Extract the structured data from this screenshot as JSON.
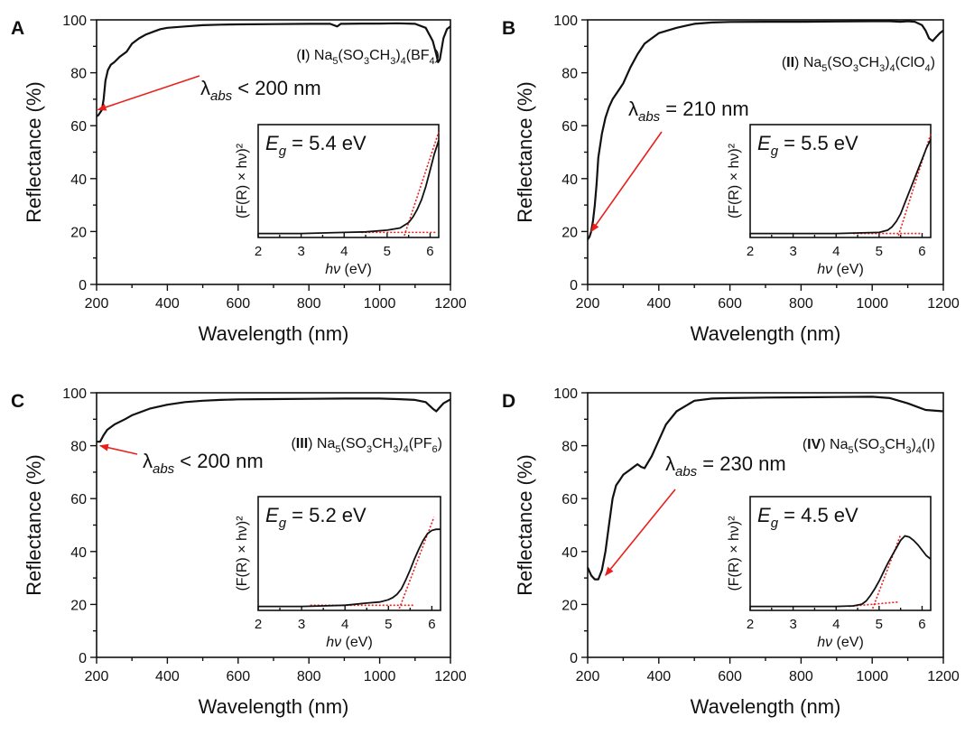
{
  "colors": {
    "line": "#111111",
    "accent": "#e8201c",
    "fit": "#e8201c"
  },
  "chart_data": [
    {
      "panel": "A",
      "type": "line",
      "xlabel": "Wavelength (nm)",
      "ylabel": "Reflectance (%)",
      "xlim": [
        200,
        1200
      ],
      "ylim": [
        0,
        100
      ],
      "xticks": [
        200,
        400,
        600,
        800,
        1000,
        1200
      ],
      "yticks": [
        0,
        20,
        40,
        60,
        80,
        100
      ],
      "compound": {
        "numeral": "I",
        "formula_parts": [
          "Na",
          "5",
          "(SO",
          "3",
          "CH",
          "3",
          ")",
          "4",
          "(BF",
          "4",
          ")"
        ]
      },
      "annotation": {
        "prefix": "λ",
        "sub": "abs",
        "text": " < 200 nm",
        "target": [
          204,
          66
        ]
      },
      "x": [
        200,
        205,
        215,
        220,
        225,
        232,
        240,
        250,
        265,
        285,
        300,
        320,
        340,
        360,
        380,
        400,
        450,
        500,
        550,
        600,
        700,
        800,
        860,
        880,
        890,
        900,
        950,
        1000,
        1050,
        1100,
        1130,
        1150,
        1160,
        1165,
        1170,
        1180,
        1190,
        1200
      ],
      "y": [
        63.5,
        64,
        66,
        70,
        77,
        81,
        83,
        84,
        86,
        88,
        91,
        93,
        94.5,
        95.5,
        96.5,
        97,
        97.5,
        98,
        98.2,
        98.3,
        98.4,
        98.5,
        98.5,
        97.5,
        98.5,
        98.5,
        98.6,
        98.6,
        98.7,
        98.5,
        97,
        92,
        87,
        84,
        85,
        93,
        96.5,
        97.5
      ],
      "inset": {
        "eg_label": "E",
        "eg_sub": "g",
        "eg_text": " = 5.4 eV",
        "xlabel_italic": "hν",
        "xlabel_rest": " (eV)",
        "ylabel": "(F(R) × hν)²",
        "xlim": [
          2,
          6.2
        ],
        "xticks": [
          2,
          3,
          4,
          5,
          6
        ],
        "x": [
          2,
          3,
          4,
          4.5,
          5,
          5.3,
          5.5,
          5.6,
          5.7,
          5.8,
          5.9,
          6.0,
          6.1,
          6.2
        ],
        "y": [
          0.02,
          0.02,
          0.03,
          0.035,
          0.05,
          0.07,
          0.12,
          0.17,
          0.24,
          0.33,
          0.45,
          0.6,
          0.75,
          0.87
        ],
        "fit_line": [
          [
            5.4,
            0
          ],
          [
            6.2,
            0.95
          ]
        ],
        "baseline": [
          [
            4.4,
            0.03
          ],
          [
            6.15,
            0.03
          ]
        ]
      }
    },
    {
      "panel": "B",
      "type": "line",
      "xlabel": "Wavelength (nm)",
      "ylabel": "Reflectance (%)",
      "xlim": [
        200,
        1200
      ],
      "ylim": [
        0,
        100
      ],
      "xticks": [
        200,
        400,
        600,
        800,
        1000,
        1200
      ],
      "yticks": [
        0,
        20,
        40,
        60,
        80,
        100
      ],
      "compound": {
        "numeral": "II",
        "formula_parts": [
          "Na",
          "5",
          "(SO",
          "3",
          "CH",
          "3",
          ")",
          "4",
          "(ClO",
          "4",
          ")"
        ]
      },
      "annotation": {
        "prefix": "λ",
        "sub": "abs",
        "text": " = 210 nm",
        "target": [
          210,
          20
        ]
      },
      "x": [
        200,
        205,
        210,
        215,
        220,
        225,
        230,
        240,
        250,
        260,
        270,
        290,
        300,
        320,
        340,
        360,
        380,
        400,
        450,
        500,
        550,
        600,
        700,
        800,
        900,
        1000,
        1050,
        1080,
        1100,
        1120,
        1140,
        1150,
        1160,
        1170,
        1180,
        1190,
        1200
      ],
      "y": [
        17,
        18,
        20,
        24,
        30,
        38,
        48,
        57,
        63,
        67,
        70,
        74,
        76,
        82,
        87,
        91,
        93,
        95,
        97,
        98.5,
        99,
        99.2,
        99.3,
        99.3,
        99.4,
        99.5,
        99.5,
        99.3,
        99.5,
        99.3,
        98,
        96,
        93,
        92,
        93.5,
        95,
        96
      ],
      "inset": {
        "eg_label": "E",
        "eg_sub": "g",
        "eg_text": " = 5.5 eV",
        "xlabel_italic": "hν",
        "xlabel_rest": " (eV)",
        "ylabel": "(F(R) × hν)²",
        "xlim": [
          2,
          6.2
        ],
        "xticks": [
          2,
          3,
          4,
          5,
          6
        ],
        "x": [
          2,
          3,
          4,
          4.5,
          5,
          5.2,
          5.3,
          5.4,
          5.5,
          5.6,
          5.7,
          5.8,
          5.9,
          6.0,
          6.1,
          6.2
        ],
        "y": [
          0.02,
          0.02,
          0.02,
          0.025,
          0.03,
          0.05,
          0.08,
          0.13,
          0.2,
          0.3,
          0.4,
          0.5,
          0.6,
          0.7,
          0.8,
          0.88
        ],
        "fit_line": [
          [
            5.45,
            0
          ],
          [
            6.2,
            0.93
          ]
        ],
        "baseline": [
          [
            4.4,
            0.02
          ],
          [
            6.0,
            0.02
          ]
        ]
      }
    },
    {
      "panel": "C",
      "type": "line",
      "xlabel": "Wavelength (nm)",
      "ylabel": "Reflectance (%)",
      "xlim": [
        200,
        1200
      ],
      "ylim": [
        0,
        100
      ],
      "xticks": [
        200,
        400,
        600,
        800,
        1000,
        1200
      ],
      "yticks": [
        0,
        20,
        40,
        60,
        80,
        100
      ],
      "compound": {
        "numeral": "III",
        "formula_parts": [
          "Na",
          "5",
          "(SO",
          "3",
          "CH",
          "3",
          ")",
          "4",
          "(PF",
          "6",
          ")"
        ]
      },
      "annotation": {
        "prefix": "λ",
        "sub": "abs",
        "text": " < 200 nm",
        "target": [
          210,
          80
        ]
      },
      "x": [
        200,
        210,
        220,
        230,
        250,
        280,
        300,
        350,
        400,
        450,
        500,
        550,
        600,
        700,
        800,
        900,
        1000,
        1050,
        1100,
        1130,
        1150,
        1160,
        1170,
        1180,
        1200
      ],
      "y": [
        81.5,
        81.5,
        84,
        86,
        88,
        90,
        91.5,
        94,
        95.5,
        96.5,
        97,
        97.3,
        97.5,
        97.6,
        97.7,
        97.8,
        97.8,
        97.6,
        97.3,
        96.5,
        94,
        93,
        94.5,
        96,
        97.5
      ],
      "inset": {
        "eg_label": "E",
        "eg_sub": "g",
        "eg_text": " = 5.2 eV",
        "xlabel_italic": "hν",
        "xlabel_rest": " (eV)",
        "ylabel": "(F(R) × hν)²",
        "xlim": [
          2,
          6.2
        ],
        "xticks": [
          2,
          3,
          4,
          5,
          6
        ],
        "x": [
          2,
          3,
          3.5,
          4,
          4.5,
          4.8,
          5.0,
          5.1,
          5.2,
          5.3,
          5.4,
          5.5,
          5.6,
          5.7,
          5.8,
          5.9,
          6.0,
          6.1,
          6.2
        ],
        "y": [
          0.02,
          0.02,
          0.025,
          0.03,
          0.05,
          0.06,
          0.08,
          0.1,
          0.13,
          0.18,
          0.26,
          0.35,
          0.45,
          0.54,
          0.62,
          0.68,
          0.71,
          0.72,
          0.72
        ],
        "fit_line": [
          [
            5.25,
            0
          ],
          [
            6.05,
            0.83
          ]
        ],
        "baseline": [
          [
            3.2,
            0.03
          ],
          [
            5.6,
            0.03
          ]
        ]
      }
    },
    {
      "panel": "D",
      "type": "line",
      "xlabel": "Wavelength (nm)",
      "ylabel": "Reflectance (%)",
      "xlim": [
        200,
        1200
      ],
      "ylim": [
        0,
        100
      ],
      "xticks": [
        200,
        400,
        600,
        800,
        1000,
        1200
      ],
      "yticks": [
        0,
        20,
        40,
        60,
        80,
        100
      ],
      "compound": {
        "numeral": "IV",
        "formula_parts": [
          "Na",
          "5",
          "(SO",
          "3",
          "CH",
          "3",
          ")",
          "4",
          "(I)"
        ]
      },
      "annotation": {
        "prefix": "λ",
        "sub": "abs",
        "text": " = 230 nm",
        "target": [
          250,
          31
        ]
      },
      "x": [
        200,
        210,
        220,
        230,
        240,
        250,
        260,
        270,
        280,
        290,
        300,
        320,
        330,
        340,
        350,
        360,
        380,
        400,
        420,
        450,
        500,
        550,
        600,
        700,
        800,
        900,
        1000,
        1050,
        1100,
        1150,
        1200
      ],
      "y": [
        34,
        31,
        29.5,
        29.5,
        33,
        40,
        50,
        60,
        65,
        67,
        69,
        71,
        72,
        73,
        72,
        71.5,
        76,
        82,
        88,
        93,
        97,
        97.8,
        98,
        98.2,
        98.3,
        98.4,
        98.5,
        98,
        96,
        93.5,
        93
      ],
      "inset": {
        "eg_label": "E",
        "eg_sub": "g",
        "eg_text": " = 4.5 eV",
        "xlabel_italic": "hν",
        "xlabel_rest": " (eV)",
        "ylabel": "(F(R) × hν)²",
        "xlim": [
          2,
          6.2
        ],
        "xticks": [
          2,
          3,
          4,
          5,
          6
        ],
        "x": [
          2,
          3,
          4,
          4.4,
          4.6,
          4.7,
          4.8,
          4.9,
          5.0,
          5.1,
          5.2,
          5.3,
          5.4,
          5.5,
          5.6,
          5.7,
          5.8,
          5.9,
          6.0,
          6.1,
          6.2
        ],
        "y": [
          0.02,
          0.02,
          0.02,
          0.025,
          0.04,
          0.07,
          0.12,
          0.18,
          0.25,
          0.33,
          0.41,
          0.48,
          0.55,
          0.62,
          0.66,
          0.65,
          0.62,
          0.58,
          0.53,
          0.48,
          0.45
        ],
        "fit_line": [
          [
            4.85,
            0
          ],
          [
            5.5,
            0.67
          ]
        ],
        "baseline": [
          [
            4.3,
            0.02
          ],
          [
            5.45,
            0.06
          ]
        ]
      }
    }
  ]
}
